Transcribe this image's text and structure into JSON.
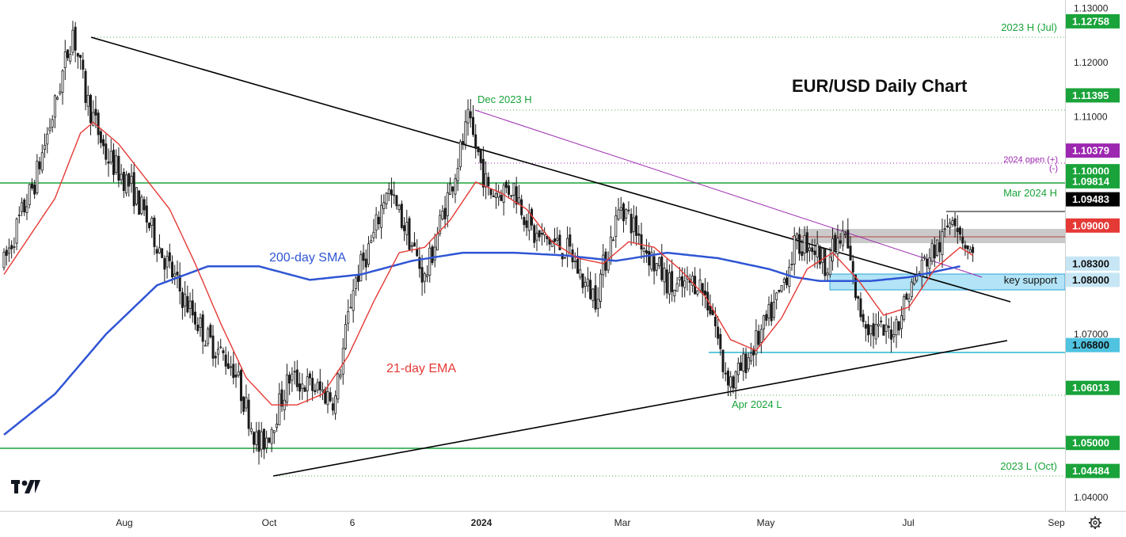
{
  "chart_data": {
    "type": "candlestick",
    "title": "EUR/USD Daily Chart",
    "y_axis": {
      "ylim": [
        1.0375,
        1.1315
      ],
      "ticks": [
        "1.13000",
        "1.12000",
        "1.11000",
        "1.10000",
        "1.07000",
        "1.04000"
      ]
    },
    "x_axis": {
      "ticks": [
        "Aug",
        "Oct",
        "6",
        "2024",
        "Mar",
        "May",
        "Jul",
        "Sep"
      ]
    },
    "price_tags": [
      {
        "value": "1.12758",
        "color": "#1aa33a"
      },
      {
        "value": "1.11395",
        "color": "#1aa33a"
      },
      {
        "value": "1.10379",
        "color": "#9c27b0"
      },
      {
        "value": "1.10000",
        "color": "#1aa33a"
      },
      {
        "value": "1.09814",
        "color": "#1aa33a"
      },
      {
        "value": "1.09483",
        "color": "#000000"
      },
      {
        "value": "1.09000",
        "color": "#e53935"
      },
      {
        "value": "1.08300",
        "color": "#c7e6f5"
      },
      {
        "value": "1.08000",
        "color": "#c7e6f5"
      },
      {
        "value": "1.06800",
        "color": "#4fc3e0"
      },
      {
        "value": "1.06013",
        "color": "#1aa33a"
      },
      {
        "value": "1.05000",
        "color": "#1aa33a"
      },
      {
        "value": "1.04484",
        "color": "#1aa33a"
      }
    ],
    "annotations": {
      "h2023": "2023 H (Jul)",
      "dec2023": "Dec 2023 H",
      "open2024": "2024 open (+)",
      "open2024b": "(-)",
      "mar2024": "Mar 2024 H",
      "key_support": "key support",
      "apr2024": "Apr 2024 L",
      "l2023": "2023 L (Oct)",
      "sma": "200-day SMA",
      "ema": "21-day EMA"
    },
    "series": [
      {
        "name": "200-day SMA",
        "color": "#2f55d4"
      },
      {
        "name": "21-day EMA",
        "color": "#e53935"
      }
    ],
    "price_path": [
      [
        0,
        1.083
      ],
      [
        6,
        1.091
      ],
      [
        12,
        1.098
      ],
      [
        20,
        1.112
      ],
      [
        27,
        1.126
      ],
      [
        32,
        1.114
      ],
      [
        40,
        1.103
      ],
      [
        50,
        1.097
      ],
      [
        60,
        1.087
      ],
      [
        70,
        1.077
      ],
      [
        80,
        1.069
      ],
      [
        90,
        1.064
      ],
      [
        96,
        1.055
      ],
      [
        100,
        1.049
      ],
      [
        104,
        1.052
      ],
      [
        112,
        1.062
      ],
      [
        122,
        1.06
      ],
      [
        130,
        1.058
      ],
      [
        137,
        1.079
      ],
      [
        145,
        1.088
      ],
      [
        150,
        1.097
      ],
      [
        158,
        1.089
      ],
      [
        165,
        1.08
      ],
      [
        172,
        1.092
      ],
      [
        177,
        1.1
      ],
      [
        182,
        1.109
      ],
      [
        186,
        1.103
      ],
      [
        190,
        1.096
      ],
      [
        200,
        1.097
      ],
      [
        208,
        1.088
      ],
      [
        215,
        1.087
      ],
      [
        222,
        1.085
      ],
      [
        228,
        1.079
      ],
      [
        232,
        1.077
      ],
      [
        236,
        1.084
      ],
      [
        242,
        1.094
      ],
      [
        248,
        1.089
      ],
      [
        255,
        1.083
      ],
      [
        263,
        1.078
      ],
      [
        272,
        1.08
      ],
      [
        278,
        1.074
      ],
      [
        282,
        1.064
      ],
      [
        286,
        1.061
      ],
      [
        292,
        1.066
      ],
      [
        298,
        1.071
      ],
      [
        304,
        1.077
      ],
      [
        310,
        1.086
      ],
      [
        316,
        1.087
      ],
      [
        322,
        1.083
      ],
      [
        326,
        1.086
      ],
      [
        330,
        1.088
      ],
      [
        335,
        1.075
      ],
      [
        340,
        1.071
      ],
      [
        346,
        1.07
      ],
      [
        350,
        1.072
      ],
      [
        356,
        1.079
      ],
      [
        362,
        1.084
      ],
      [
        368,
        1.087
      ],
      [
        372,
        1.093
      ],
      [
        376,
        1.088
      ],
      [
        380,
        1.084
      ]
    ],
    "sma_path": [
      [
        0,
        1.0515
      ],
      [
        20,
        1.059
      ],
      [
        40,
        1.07
      ],
      [
        60,
        1.079
      ],
      [
        80,
        1.0825
      ],
      [
        100,
        1.0825
      ],
      [
        120,
        1.08
      ],
      [
        140,
        1.081
      ],
      [
        160,
        1.0835
      ],
      [
        180,
        1.085
      ],
      [
        200,
        1.085
      ],
      [
        220,
        1.0845
      ],
      [
        240,
        1.0835
      ],
      [
        260,
        1.085
      ],
      [
        280,
        1.084
      ],
      [
        300,
        1.082
      ],
      [
        310,
        1.0805
      ],
      [
        320,
        1.0798
      ],
      [
        340,
        1.0798
      ],
      [
        355,
        1.0805
      ],
      [
        365,
        1.0815
      ],
      [
        375,
        1.0825
      ]
    ],
    "ema_path": [
      [
        0,
        1.081
      ],
      [
        10,
        1.088
      ],
      [
        20,
        1.095
      ],
      [
        30,
        1.107
      ],
      [
        35,
        1.109
      ],
      [
        45,
        1.105
      ],
      [
        55,
        1.099
      ],
      [
        65,
        1.093
      ],
      [
        75,
        1.083
      ],
      [
        85,
        1.072
      ],
      [
        95,
        1.062
      ],
      [
        105,
        1.057
      ],
      [
        115,
        1.057
      ],
      [
        125,
        1.059
      ],
      [
        135,
        1.066
      ],
      [
        145,
        1.076
      ],
      [
        155,
        1.085
      ],
      [
        165,
        1.086
      ],
      [
        175,
        1.091
      ],
      [
        185,
        1.098
      ],
      [
        195,
        1.096
      ],
      [
        205,
        1.093
      ],
      [
        215,
        1.087
      ],
      [
        225,
        1.084
      ],
      [
        235,
        1.083
      ],
      [
        245,
        1.087
      ],
      [
        255,
        1.086
      ],
      [
        265,
        1.082
      ],
      [
        275,
        1.077
      ],
      [
        285,
        1.069
      ],
      [
        295,
        1.067
      ],
      [
        305,
        1.073
      ],
      [
        315,
        1.082
      ],
      [
        325,
        1.085
      ],
      [
        335,
        1.08
      ],
      [
        345,
        1.0735
      ],
      [
        355,
        1.075
      ],
      [
        365,
        1.082
      ],
      [
        375,
        1.086
      ],
      [
        380,
        1.0845
      ]
    ]
  },
  "logo": "TV"
}
